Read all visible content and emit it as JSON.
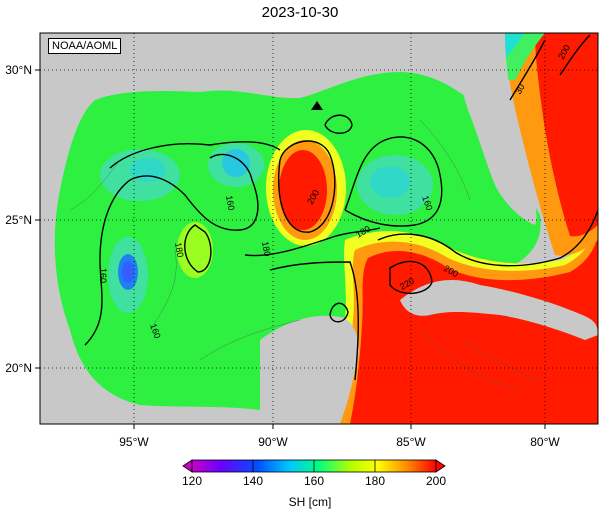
{
  "title": "2023-10-30",
  "credit": "NOAA/AOML",
  "colorbar": {
    "label": "SH [cm]",
    "ticks": [
      "120",
      "140",
      "160",
      "180",
      "200"
    ],
    "min": 120,
    "max": 200,
    "colors": [
      "#c800c8",
      "#6a00ff",
      "#0050ff",
      "#00c8ff",
      "#00ff80",
      "#b4ff00",
      "#ffff00",
      "#ff8c00",
      "#ff0000"
    ]
  },
  "axes": {
    "lon_ticks": [
      "95°W",
      "90°W",
      "85°W",
      "80°W"
    ],
    "lat_ticks": [
      "30°N",
      "25°N",
      "20°N"
    ]
  },
  "contour_labels": [
    "160",
    "160",
    "160",
    "160",
    "180",
    "180",
    "180",
    "200",
    "200",
    "200",
    "220",
    "30"
  ],
  "marker": {
    "name": "triangle",
    "lon": -88.5,
    "lat": 28.7
  },
  "colors": {
    "land": "#c8c8c8",
    "low": "#00c8ff",
    "mid": "#00ff40",
    "high": "#ff0000"
  }
}
